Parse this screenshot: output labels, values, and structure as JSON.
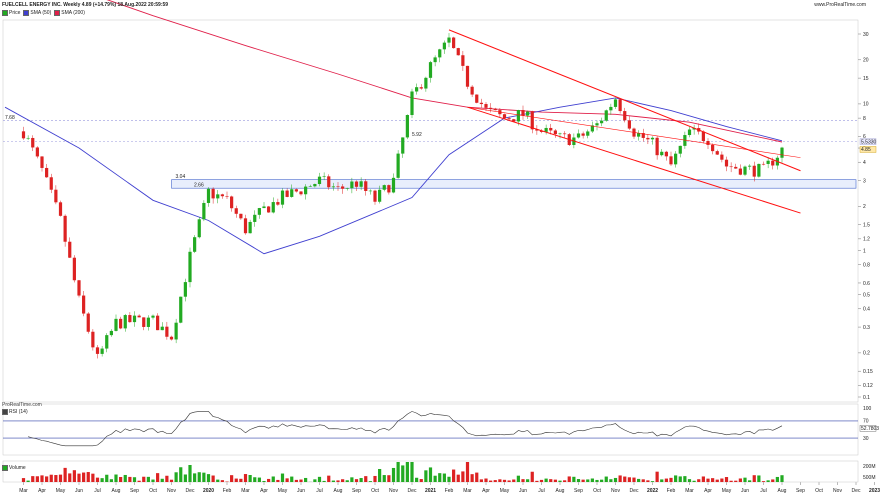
{
  "header": {
    "title": "FUELCELL ENERGY INC. Weekly 4.89 (+14.79%) 18.Aug.2022 20:59:59",
    "brand": "www.ProRealTime.com"
  },
  "legend": [
    {
      "label": "Price",
      "color": "#22aa22"
    },
    {
      "label": "SMA (50)",
      "color": "#4040d0"
    },
    {
      "label": "SMA (200)",
      "color": "#e0204a"
    }
  ],
  "watermark": "ProRealTime.com",
  "rsi_panel": {
    "title": "RSI (14)",
    "last_label": "52.7803",
    "ticks": [
      "100",
      "70",
      "50",
      "30"
    ]
  },
  "volume_panel": {
    "title": "Volume",
    "ticks": [
      "200M",
      "500M"
    ]
  },
  "colors": {
    "up": "#22aa22",
    "down": "#dd2222",
    "sma50": "#4040d0",
    "sma200": "#e0204a",
    "channel": "#ff1010",
    "zone": "#e8eefc"
  },
  "chart_data": {
    "type": "candlestick",
    "scale": "log",
    "y_ticks": [
      "30",
      "20",
      "15",
      "10",
      "8",
      "6",
      "5",
      "4",
      "3",
      "2",
      "1.5",
      "1.2",
      "1",
      "0.8",
      "0.6",
      "0.5",
      "0.4",
      "0.3",
      "0.2",
      "0.15",
      "0.12",
      "0.1"
    ],
    "x_ticks": [
      "Mar",
      "Apr",
      "May",
      "Jun",
      "Jul",
      "Aug",
      "Sep",
      "Oct",
      "Nov",
      "Dec",
      "2020",
      "Feb",
      "Mar",
      "Apr",
      "May",
      "Jun",
      "Jul",
      "Aug",
      "Sep",
      "Oct",
      "Nov",
      "Dec",
      "2021",
      "Feb",
      "Mar",
      "Apr",
      "May",
      "Jun",
      "Jul",
      "Aug",
      "Sep",
      "Oct",
      "Nov",
      "Dec",
      "2022",
      "Feb",
      "Mar",
      "Apr",
      "May",
      "Jun",
      "Jul",
      "Aug",
      "Sep",
      "Oct",
      "Nov",
      "Dec",
      "2023"
    ],
    "annotations": [
      "7.68",
      "5.92",
      "3.04",
      "2.66"
    ],
    "right_labels": [
      "5.5330",
      "4.85"
    ],
    "price_path": [
      {
        "x": "2019-03",
        "y": 6.5
      },
      {
        "x": "2019-04",
        "y": 3.5
      },
      {
        "x": "2019-05",
        "y": 1.6
      },
      {
        "x": "2019-06",
        "y": 0.45
      },
      {
        "x": "2019-07",
        "y": 0.18
      },
      {
        "x": "2019-08",
        "y": 0.32
      },
      {
        "x": "2019-09",
        "y": 0.33
      },
      {
        "x": "2019-10",
        "y": 0.33
      },
      {
        "x": "2019-11",
        "y": 0.26
      },
      {
        "x": "2019-12",
        "y": 0.9
      },
      {
        "x": "2020-01",
        "y": 2.5
      },
      {
        "x": "2020-02",
        "y": 2.2
      },
      {
        "x": "2020-03",
        "y": 1.4
      },
      {
        "x": "2020-04",
        "y": 1.9
      },
      {
        "x": "2020-05",
        "y": 2.3
      },
      {
        "x": "2020-06",
        "y": 2.6
      },
      {
        "x": "2020-07",
        "y": 3.0
      },
      {
        "x": "2020-08",
        "y": 2.6
      },
      {
        "x": "2020-09",
        "y": 2.9
      },
      {
        "x": "2020-10",
        "y": 2.2
      },
      {
        "x": "2020-11",
        "y": 3.0
      },
      {
        "x": "2020-12",
        "y": 11
      },
      {
        "x": "2021-01",
        "y": 18
      },
      {
        "x": "2021-02",
        "y": 27
      },
      {
        "x": "2021-03",
        "y": 14
      },
      {
        "x": "2021-04",
        "y": 9
      },
      {
        "x": "2021-05",
        "y": 8
      },
      {
        "x": "2021-06",
        "y": 8.5
      },
      {
        "x": "2021-07",
        "y": 6.5
      },
      {
        "x": "2021-08",
        "y": 5.8
      },
      {
        "x": "2021-09",
        "y": 5.8
      },
      {
        "x": "2021-10",
        "y": 7.2
      },
      {
        "x": "2021-11",
        "y": 11
      },
      {
        "x": "2021-12",
        "y": 6.5
      },
      {
        "x": "2022-01",
        "y": 5.3
      },
      {
        "x": "2022-02",
        "y": 3.8
      },
      {
        "x": "2022-03",
        "y": 6.5
      },
      {
        "x": "2022-04",
        "y": 5.8
      },
      {
        "x": "2022-05",
        "y": 3.8
      },
      {
        "x": "2022-06",
        "y": 3.6
      },
      {
        "x": "2022-07",
        "y": 3.5
      },
      {
        "x": "2022-08",
        "y": 4.89
      }
    ],
    "sma50_path": [
      {
        "x": "2019-02",
        "y": 9.5
      },
      {
        "x": "2019-06",
        "y": 5.0
      },
      {
        "x": "2019-10",
        "y": 2.2
      },
      {
        "x": "2020-01",
        "y": 1.6
      },
      {
        "x": "2020-04",
        "y": 0.95
      },
      {
        "x": "2020-07",
        "y": 1.25
      },
      {
        "x": "2020-10",
        "y": 1.8
      },
      {
        "x": "2020-12",
        "y": 2.3
      },
      {
        "x": "2021-02",
        "y": 4.5
      },
      {
        "x": "2021-05",
        "y": 8.0
      },
      {
        "x": "2021-08",
        "y": 9.5
      },
      {
        "x": "2021-11",
        "y": 11
      },
      {
        "x": "2022-02",
        "y": 9.0
      },
      {
        "x": "2022-05",
        "y": 7.0
      },
      {
        "x": "2022-08",
        "y": 5.6
      }
    ],
    "sma200_path": [
      {
        "x": "2019-02",
        "y": 80
      },
      {
        "x": "2019-06",
        "y": 60
      },
      {
        "x": "2019-10",
        "y": 40
      },
      {
        "x": "2020-03",
        "y": 25
      },
      {
        "x": "2020-08",
        "y": 16
      },
      {
        "x": "2020-12",
        "y": 11
      },
      {
        "x": "2021-03",
        "y": 9.5
      },
      {
        "x": "2021-07",
        "y": 8.8
      },
      {
        "x": "2021-11",
        "y": 8.5
      },
      {
        "x": "2022-03",
        "y": 7.5
      },
      {
        "x": "2022-08",
        "y": 5.5
      }
    ],
    "channel_upper": [
      {
        "x": "2021-02",
        "y": 32
      },
      {
        "x": "2022-09",
        "y": 3.5
      }
    ],
    "channel_lower": [
      {
        "x": "2021-03",
        "y": 9.5
      },
      {
        "x": "2022-09",
        "y": 1.8
      }
    ],
    "channel_mid": [
      {
        "x": "2021-03",
        "y": 9.5
      },
      {
        "x": "2022-09",
        "y": 4.3
      }
    ],
    "zone": {
      "from": "2019-11",
      "to": "2022-12",
      "low": 2.66,
      "high": 3.04
    },
    "hlines": [
      7.68,
      5.53
    ]
  }
}
